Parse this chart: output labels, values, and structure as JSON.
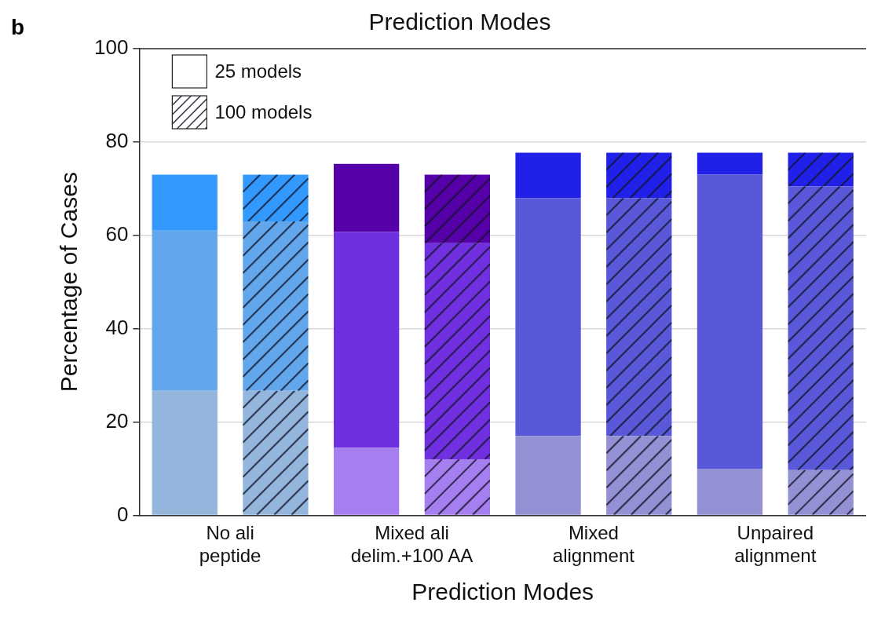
{
  "chart_data": {
    "type": "bar",
    "title": "Prediction Modes",
    "xlabel": "Prediction Modes",
    "ylabel": "Percentage of Cases",
    "annotations": [
      "b",
      "25 models",
      "100 models"
    ],
    "categories": [
      "No ali\npeptide",
      null,
      "Mixed ali\ndelim.+100 AA",
      null,
      "Mixed\nalignment",
      null,
      "Unpaired\nalignment",
      null
    ],
    "stacked": true,
    "ylim": [
      0,
      100
    ],
    "yticks": [
      0,
      20,
      40,
      60,
      80,
      100
    ],
    "grid": "y",
    "series": [
      {
        "colors": [
          "#94b6dc",
          "#94b6dc",
          "#a57ef0",
          "#a57ef0",
          "#9490d4",
          "#9490d4",
          "#9490d4",
          "#9490d4"
        ],
        "values": [
          26.7,
          26.7,
          14.5,
          12,
          17,
          17,
          10,
          9.7
        ]
      },
      {
        "colors": [
          "#62a6ec",
          "#62a6ec",
          "#7030e0",
          "#7030e0",
          "#5858d8",
          "#5858d8",
          "#5858d8",
          "#5858d8"
        ],
        "values": [
          34.3,
          36.3,
          46.2,
          46.3,
          51,
          51,
          63,
          60.8
        ]
      },
      {
        "colors": [
          "#3399ff",
          "#3399ff",
          "#5500a8",
          "#5500a8",
          "#2020e8",
          "#2020e8",
          "#2020e8",
          "#2020e8"
        ],
        "values": [
          12,
          10,
          14.6,
          14.7,
          9.7,
          9.7,
          4.7,
          7.2
        ]
      }
    ]
  }
}
